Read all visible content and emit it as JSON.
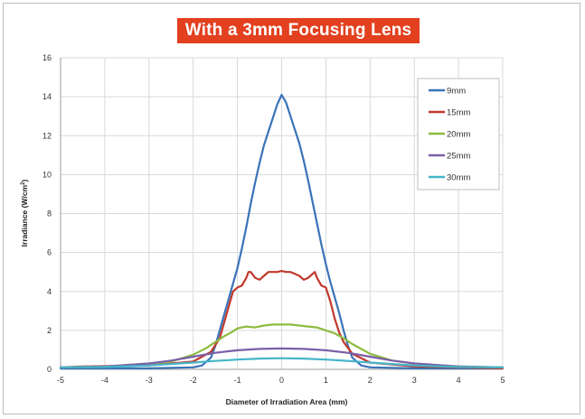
{
  "chart_data": {
    "type": "line",
    "title": "With a 3mm Focusing Lens",
    "xlabel": "Diameter of Irradiation Area (mm)",
    "ylabel_main": "Irradiance (W/cm",
    "ylabel_sup": "2",
    "ylabel_end": ")",
    "xlim": [
      -5,
      5
    ],
    "ylim": [
      0,
      16
    ],
    "xticks": [
      -5,
      -4,
      -3,
      -2,
      -1,
      0,
      1,
      2,
      3,
      4,
      5
    ],
    "yticks": [
      0,
      2,
      4,
      6,
      8,
      10,
      12,
      14,
      16
    ],
    "grid": true,
    "legend_position": "top-right",
    "series": [
      {
        "name": "9mm",
        "color": "#3a73b8",
        "points": [
          [
            -5,
            0.05
          ],
          [
            -3,
            0.05
          ],
          [
            -2,
            0.1
          ],
          [
            -1.8,
            0.2
          ],
          [
            -1.6,
            0.6
          ],
          [
            -1.5,
            1.2
          ],
          [
            -1.4,
            2.0
          ],
          [
            -1.3,
            2.8
          ],
          [
            -1.2,
            3.6
          ],
          [
            -1.1,
            4.4
          ],
          [
            -1.0,
            5.2
          ],
          [
            -0.9,
            6.2
          ],
          [
            -0.8,
            7.3
          ],
          [
            -0.7,
            8.5
          ],
          [
            -0.6,
            9.6
          ],
          [
            -0.5,
            10.6
          ],
          [
            -0.4,
            11.5
          ],
          [
            -0.3,
            12.2
          ],
          [
            -0.2,
            12.9
          ],
          [
            -0.1,
            13.6
          ],
          [
            0,
            14.1
          ],
          [
            0.1,
            13.7
          ],
          [
            0.2,
            13.0
          ],
          [
            0.3,
            12.3
          ],
          [
            0.4,
            11.6
          ],
          [
            0.5,
            10.7
          ],
          [
            0.6,
            9.7
          ],
          [
            0.7,
            8.6
          ],
          [
            0.8,
            7.5
          ],
          [
            0.9,
            6.4
          ],
          [
            1.0,
            5.4
          ],
          [
            1.1,
            4.5
          ],
          [
            1.2,
            3.7
          ],
          [
            1.3,
            2.9
          ],
          [
            1.4,
            2.0
          ],
          [
            1.5,
            1.2
          ],
          [
            1.6,
            0.6
          ],
          [
            1.8,
            0.2
          ],
          [
            2,
            0.1
          ],
          [
            3,
            0.05
          ],
          [
            5,
            0.05
          ]
        ]
      },
      {
        "name": "15mm",
        "color": "#c0392b",
        "points": [
          [
            -5,
            0.1
          ],
          [
            -4.5,
            0.15
          ],
          [
            -3,
            0.2
          ],
          [
            -2,
            0.4
          ],
          [
            -1.6,
            0.9
          ],
          [
            -1.4,
            1.6
          ],
          [
            -1.3,
            2.4
          ],
          [
            -1.2,
            3.2
          ],
          [
            -1.1,
            4.0
          ],
          [
            -1.0,
            4.2
          ],
          [
            -0.9,
            4.3
          ],
          [
            -0.8,
            4.7
          ],
          [
            -0.75,
            5.0
          ],
          [
            -0.7,
            5.0
          ],
          [
            -0.6,
            4.7
          ],
          [
            -0.5,
            4.6
          ],
          [
            -0.4,
            4.8
          ],
          [
            -0.3,
            5.0
          ],
          [
            -0.2,
            5.0
          ],
          [
            -0.1,
            5.0
          ],
          [
            0,
            5.05
          ],
          [
            0.1,
            5.0
          ],
          [
            0.2,
            5.0
          ],
          [
            0.3,
            4.9
          ],
          [
            0.4,
            4.8
          ],
          [
            0.5,
            4.6
          ],
          [
            0.6,
            4.7
          ],
          [
            0.7,
            4.9
          ],
          [
            0.75,
            5.0
          ],
          [
            0.8,
            4.7
          ],
          [
            0.9,
            4.3
          ],
          [
            1.0,
            4.2
          ],
          [
            1.1,
            3.5
          ],
          [
            1.2,
            2.6
          ],
          [
            1.3,
            1.9
          ],
          [
            1.4,
            1.4
          ],
          [
            1.6,
            0.8
          ],
          [
            2,
            0.35
          ],
          [
            3,
            0.15
          ],
          [
            4,
            0.1
          ],
          [
            5,
            0.05
          ]
        ]
      },
      {
        "name": "20mm",
        "color": "#8cbb3f",
        "points": [
          [
            -5,
            0.1
          ],
          [
            -4,
            0.15
          ],
          [
            -3,
            0.3
          ],
          [
            -2.5,
            0.4
          ],
          [
            -2,
            0.75
          ],
          [
            -1.7,
            1.1
          ],
          [
            -1.5,
            1.4
          ],
          [
            -1.3,
            1.7
          ],
          [
            -1.1,
            1.95
          ],
          [
            -1.0,
            2.1
          ],
          [
            -0.8,
            2.2
          ],
          [
            -0.6,
            2.15
          ],
          [
            -0.4,
            2.25
          ],
          [
            -0.2,
            2.3
          ],
          [
            0,
            2.3
          ],
          [
            0.2,
            2.3
          ],
          [
            0.4,
            2.25
          ],
          [
            0.6,
            2.2
          ],
          [
            0.8,
            2.15
          ],
          [
            1.0,
            2.0
          ],
          [
            1.2,
            1.85
          ],
          [
            1.4,
            1.6
          ],
          [
            1.6,
            1.3
          ],
          [
            1.8,
            1.05
          ],
          [
            2,
            0.8
          ],
          [
            2.5,
            0.45
          ],
          [
            3,
            0.3
          ],
          [
            4,
            0.15
          ],
          [
            5,
            0.1
          ]
        ]
      },
      {
        "name": "25mm",
        "color": "#7b5ea8",
        "points": [
          [
            -5,
            0.1
          ],
          [
            -4,
            0.15
          ],
          [
            -3,
            0.3
          ],
          [
            -2.5,
            0.45
          ],
          [
            -2,
            0.65
          ],
          [
            -1.5,
            0.85
          ],
          [
            -1,
            0.98
          ],
          [
            -0.5,
            1.05
          ],
          [
            0,
            1.07
          ],
          [
            0.5,
            1.05
          ],
          [
            1,
            0.98
          ],
          [
            1.5,
            0.85
          ],
          [
            2,
            0.65
          ],
          [
            2.5,
            0.45
          ],
          [
            3,
            0.3
          ],
          [
            4,
            0.15
          ],
          [
            5,
            0.1
          ]
        ]
      },
      {
        "name": "30mm",
        "color": "#45b5c9",
        "points": [
          [
            -5,
            0.1
          ],
          [
            -4,
            0.12
          ],
          [
            -3,
            0.2
          ],
          [
            -2,
            0.35
          ],
          [
            -1.5,
            0.43
          ],
          [
            -1,
            0.5
          ],
          [
            -0.5,
            0.55
          ],
          [
            0,
            0.57
          ],
          [
            0.5,
            0.55
          ],
          [
            1,
            0.5
          ],
          [
            1.5,
            0.43
          ],
          [
            2,
            0.35
          ],
          [
            3,
            0.2
          ],
          [
            4,
            0.12
          ],
          [
            5,
            0.1
          ]
        ]
      }
    ]
  }
}
